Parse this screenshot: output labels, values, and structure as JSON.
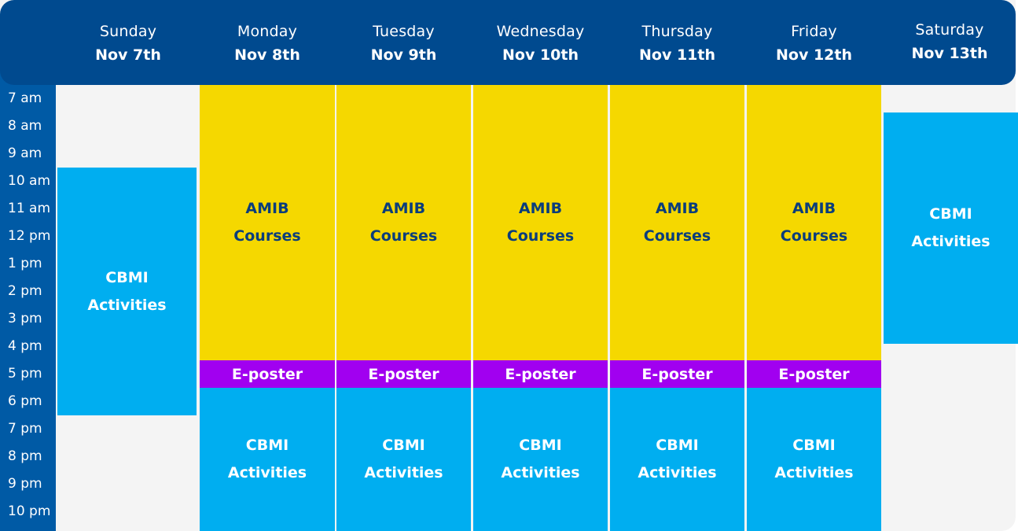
{
  "days": [
    {
      "name": "Sunday",
      "date": "Nov 7th"
    },
    {
      "name": "Monday",
      "date": "Nov 8th"
    },
    {
      "name": "Tuesday",
      "date": "Nov 9th"
    },
    {
      "name": "Wednesday",
      "date": "Nov 10th"
    },
    {
      "name": "Thursday",
      "date": "Nov 11th"
    },
    {
      "name": "Friday",
      "date": "Nov 12th"
    },
    {
      "name": "Saturday",
      "date": "Nov 13th"
    }
  ],
  "times": [
    "7 am",
    "8 am",
    "9 am",
    "10 am",
    "11 am",
    "12 pm",
    "1 pm",
    "2 pm",
    "3 pm",
    "4 pm",
    "5 pm",
    "6 pm",
    "7 pm",
    "8 pm",
    "9 pm",
    "10 pm"
  ],
  "events": {
    "cbmi": {
      "line1": "CBMI",
      "line2": "Activities"
    },
    "amib": {
      "line1": "AMIB",
      "line2": "Courses"
    },
    "eposter": {
      "label": "E-poster"
    }
  },
  "colors": {
    "header": "#004a8f",
    "time_column": "#005aa5",
    "amib_courses": "#f5d800",
    "cbmi_activities": "#00aef0",
    "eposter": "#a100f0",
    "background": "#f4f4f4"
  }
}
